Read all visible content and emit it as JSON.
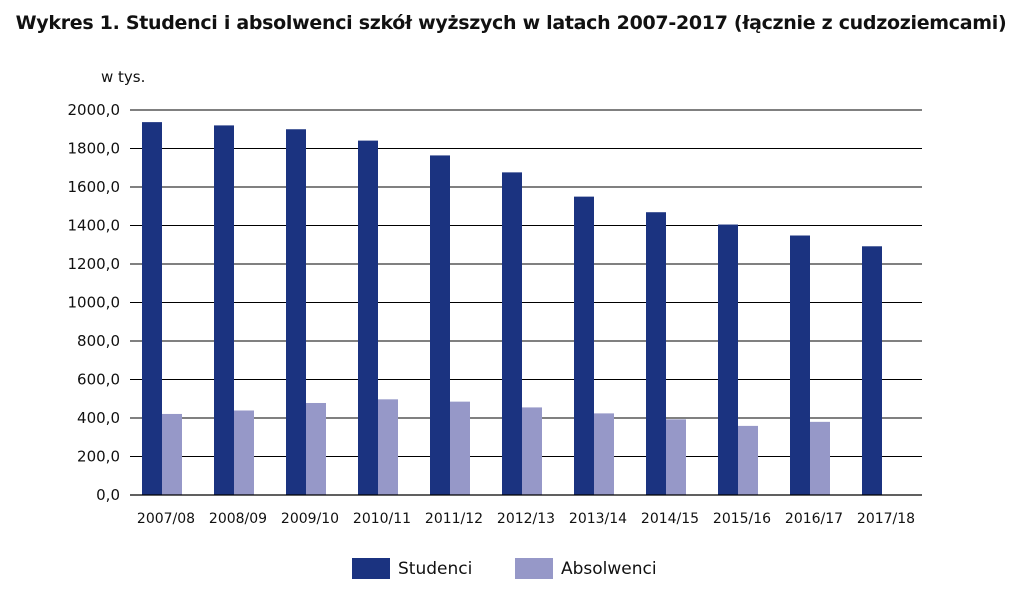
{
  "chart_data": {
    "type": "bar",
    "title": "Wykres 1. Studenci i absolwenci szkół wyższych w latach 2007-2017 (łącznie z cudzoziemcami)",
    "ylabel": "w tys.",
    "xlabel": "",
    "ylim": [
      0,
      2000
    ],
    "ytick_step": 200,
    "yticks": [
      "0,0",
      "200,0",
      "400,0",
      "600,0",
      "800,0",
      "1000,0",
      "1200,0",
      "1400,0",
      "1600,0",
      "1800,0",
      "2000,0"
    ],
    "grid": true,
    "legend": "bottom",
    "categories": [
      "2007/08",
      "2008/09",
      "2009/10",
      "2010/11",
      "2011/12",
      "2012/13",
      "2013/14",
      "2014/15",
      "2015/16",
      "2016/17",
      "2017/18"
    ],
    "series": [
      {
        "name": "Studenci",
        "color": "#1b3380",
        "values": [
          1937,
          1920,
          1900,
          1841,
          1764,
          1676,
          1550,
          1469,
          1405,
          1348,
          1292
        ]
      },
      {
        "name": "Absolwenci",
        "color": "#9698c8",
        "values": [
          421,
          439,
          478,
          497,
          485,
          455,
          424,
          393,
          359,
          380,
          null
        ]
      }
    ]
  }
}
